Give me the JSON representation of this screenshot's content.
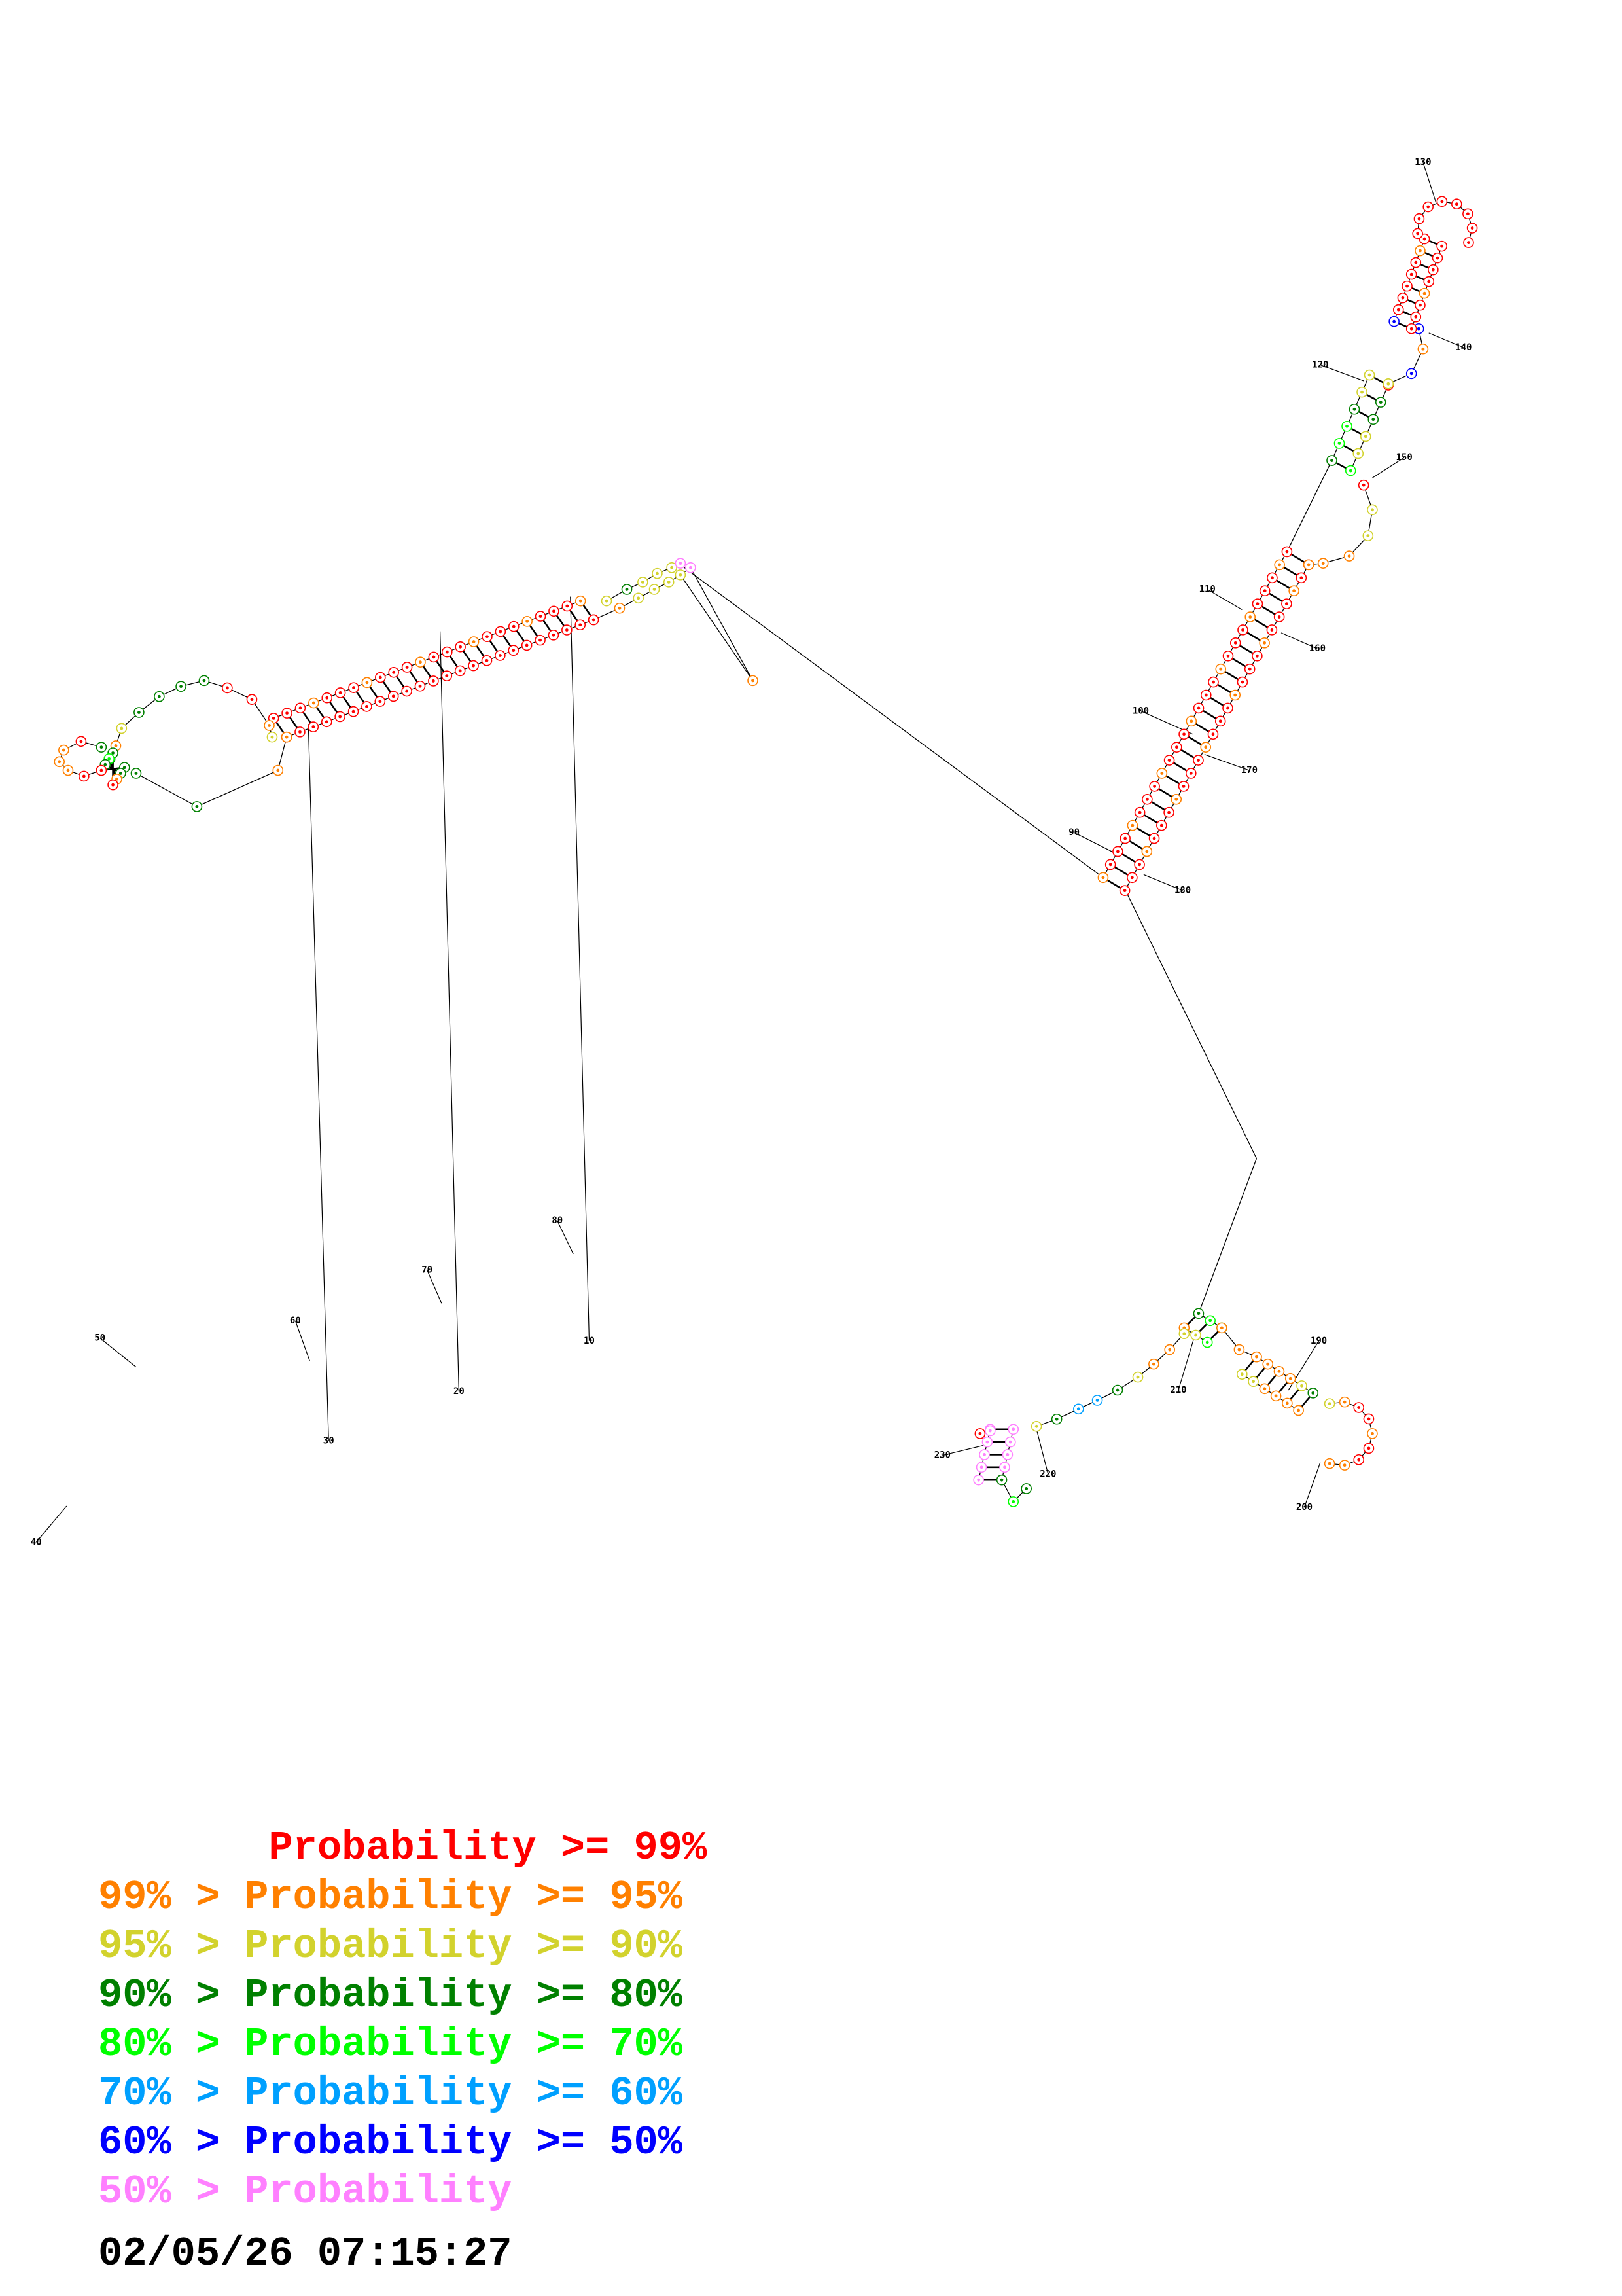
{
  "structure": {
    "position_labels": [
      "10",
      "20",
      "30",
      "40",
      "50",
      "60",
      "70",
      "80",
      "90",
      "100",
      "110",
      "120",
      "130",
      "140",
      "150",
      "160",
      "170",
      "180",
      "190",
      "200",
      "210",
      "220",
      "230"
    ]
  },
  "legend": {
    "rows": [
      {
        "prefix": "       ",
        "text": "Probability >= 99%",
        "color": "#ff0000"
      },
      {
        "prefix": "99% > ",
        "text": "Probability >= 95%",
        "color": "#ff8000"
      },
      {
        "prefix": "95% > ",
        "text": "Probability >= 90%",
        "color": "#d2d22d"
      },
      {
        "prefix": "90% > ",
        "text": "Probability >= 80%",
        "color": "#008000"
      },
      {
        "prefix": "80% > ",
        "text": "Probability >= 70%",
        "color": "#00ff00"
      },
      {
        "prefix": "70% > ",
        "text": "Probability >= 60%",
        "color": "#00a0ff"
      },
      {
        "prefix": "60% > ",
        "text": "Probability >= 50%",
        "color": "#0000ff"
      },
      {
        "prefix": "50% > ",
        "text": "Probability",
        "color": "#ff80ff"
      }
    ]
  },
  "timestamp": "02/05/26 07:15:27"
}
